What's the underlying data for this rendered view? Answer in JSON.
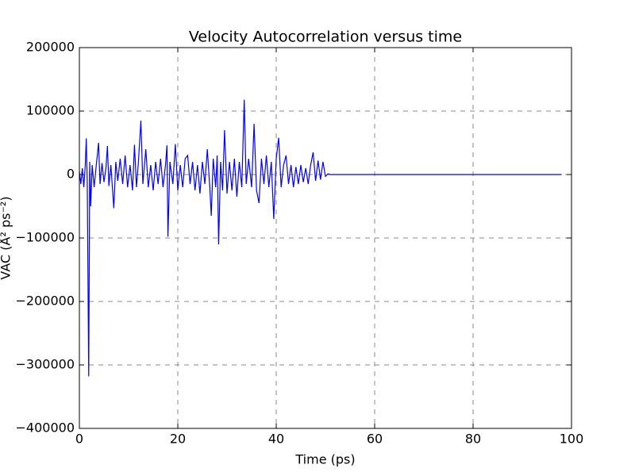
{
  "chart_data": {
    "type": "line",
    "title": "Velocity Autocorrelation versus time",
    "xlabel": "Time (ps)",
    "ylabel": "VAC (Å² ps⁻²)",
    "color": "#0000ff",
    "grid": true,
    "xlim": [
      0,
      100
    ],
    "ylim": [
      -400000,
      200000
    ],
    "xticks": [
      0,
      20,
      40,
      60,
      80,
      100
    ],
    "yticks": [
      {
        "value": -400000,
        "label": "−400000"
      },
      {
        "value": -300000,
        "label": "−300000"
      },
      {
        "value": -200000,
        "label": "−200000"
      },
      {
        "value": -100000,
        "label": "−100000"
      },
      0,
      100000,
      200000
    ],
    "x": [
      0,
      0.3,
      0.6,
      0.9,
      1.2,
      1.4,
      1.6,
      1.9,
      2.1,
      2.3,
      2.6,
      3.0,
      3.4,
      3.9,
      4.2,
      4.6,
      5.0,
      5.4,
      5.7,
      6.0,
      6.4,
      7.0,
      7.4,
      7.8,
      8.3,
      8.8,
      9.3,
      9.8,
      10.3,
      10.8,
      11.2,
      11.6,
      12.0,
      12.5,
      12.9,
      13.5,
      14.0,
      14.5,
      15.0,
      15.5,
      16.0,
      16.5,
      17.0,
      17.5,
      17.8,
      18.0,
      18.4,
      19.0,
      19.5,
      20.0,
      20.5,
      21.0,
      21.5,
      22.0,
      22.5,
      23.0,
      23.5,
      24.0,
      24.5,
      25.0,
      25.5,
      26.0,
      26.5,
      26.8,
      27.2,
      27.7,
      28.0,
      28.3,
      28.7,
      29.1,
      29.5,
      30.0,
      30.5,
      31.0,
      31.5,
      32.0,
      32.5,
      33.0,
      33.5,
      33.9,
      34.4,
      35.0,
      35.5,
      36.0,
      36.5,
      37.0,
      37.5,
      38.0,
      38.5,
      39.0,
      39.5,
      40.0,
      40.5,
      41.0,
      41.5,
      42.0,
      42.5,
      43.0,
      43.5,
      44.0,
      44.5,
      45.0,
      45.5,
      46.0,
      46.5,
      47.0,
      47.5,
      48.0,
      48.5,
      49.0,
      49.5,
      50.0,
      50.5,
      51.0,
      60,
      80,
      98
    ],
    "values": [
      5000,
      -15000,
      10000,
      -20000,
      15000,
      57000,
      -10000,
      -318000,
      20000,
      -50000,
      15000,
      -20000,
      12000,
      50000,
      -15000,
      18000,
      -12000,
      10000,
      45000,
      -18000,
      15000,
      -53000,
      20000,
      -10000,
      25000,
      -15000,
      30000,
      -20000,
      15000,
      -25000,
      47000,
      -20000,
      20000,
      85000,
      -15000,
      40000,
      -20000,
      15000,
      -25000,
      20000,
      -15000,
      25000,
      -20000,
      15000,
      46000,
      -98000,
      20000,
      -15000,
      48000,
      -25000,
      15000,
      -20000,
      25000,
      30000,
      -15000,
      20000,
      -25000,
      15000,
      -30000,
      20000,
      -15000,
      40000,
      -20000,
      -65000,
      25000,
      -20000,
      30000,
      -110000,
      20000,
      -25000,
      70000,
      -30000,
      20000,
      -25000,
      25000,
      -35000,
      20000,
      -20000,
      118000,
      -15000,
      25000,
      -20000,
      80000,
      -25000,
      -45000,
      25000,
      -15000,
      30000,
      -20000,
      20000,
      -70000,
      25000,
      58000,
      -20000,
      15000,
      30000,
      -15000,
      15000,
      -20000,
      12000,
      -15000,
      15000,
      -12000,
      10000,
      -15000,
      15000,
      35000,
      -10000,
      22000,
      -8000,
      20000,
      -3000,
      1000,
      0,
      0,
      0,
      0
    ]
  }
}
